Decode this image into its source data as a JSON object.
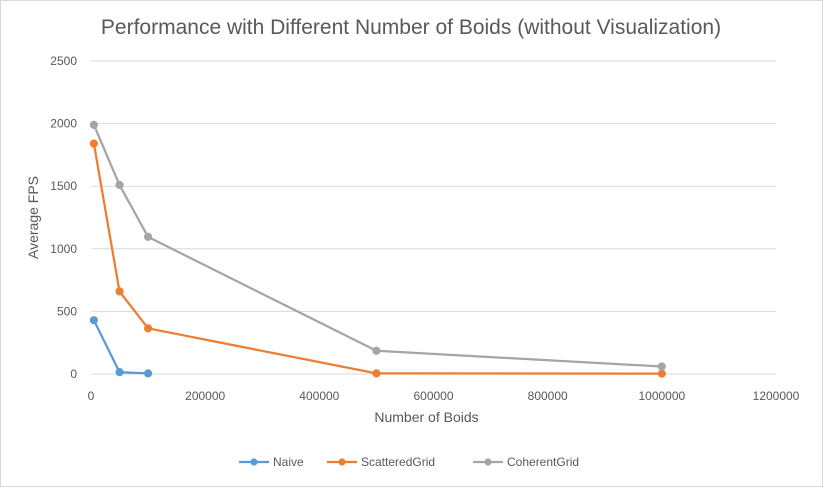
{
  "chart_data": {
    "type": "line",
    "title": "Performance with Different Number of Boids (without Visualization)",
    "xlabel": "Number of Boids",
    "ylabel": "Average FPS",
    "xlim": [
      0,
      1200000
    ],
    "ylim": [
      0,
      2500
    ],
    "x_ticks": [
      "0",
      "200000",
      "400000",
      "600000",
      "800000",
      "1000000",
      "1200000"
    ],
    "y_ticks": [
      "0",
      "500",
      "1000",
      "1500",
      "2000",
      "2500"
    ],
    "grid": "horizontal",
    "legend_position": "bottom",
    "series": [
      {
        "name": "Naive",
        "color": "#5b9bd5",
        "points": [
          [
            5000,
            430
          ],
          [
            50000,
            15
          ],
          [
            100000,
            5
          ]
        ]
      },
      {
        "name": "ScatteredGrid",
        "color": "#ed7d31",
        "points": [
          [
            5000,
            1840
          ],
          [
            50000,
            660
          ],
          [
            100000,
            365
          ],
          [
            500000,
            5
          ],
          [
            1000000,
            3
          ]
        ]
      },
      {
        "name": "CoherentGrid",
        "color": "#a5a5a5",
        "points": [
          [
            5000,
            1990
          ],
          [
            50000,
            1510
          ],
          [
            100000,
            1095
          ],
          [
            500000,
            185
          ],
          [
            1000000,
            60
          ]
        ]
      }
    ]
  }
}
